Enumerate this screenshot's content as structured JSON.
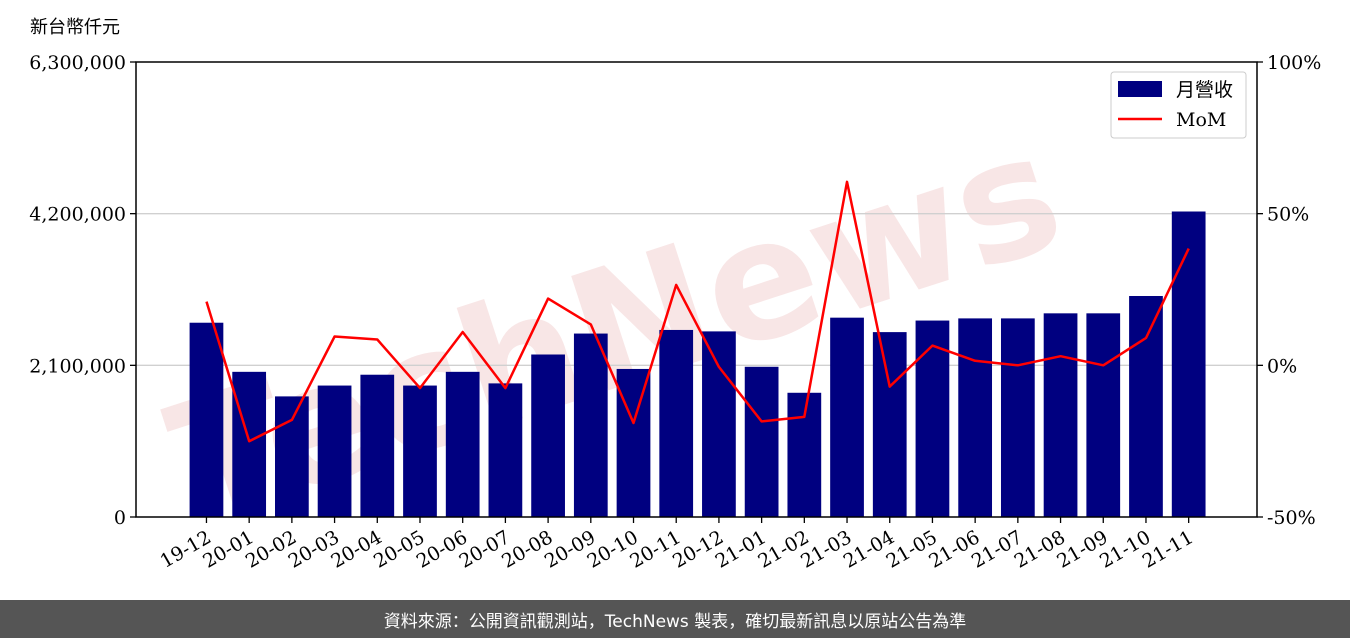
{
  "watermark": "TechNews",
  "footer": {
    "source_text": "資料來源：公開資訊觀測站，TechNews 製表，確切最新訊息以原站公告為準"
  },
  "colors": {
    "bar": "#000080",
    "line": "#ff0000",
    "grid": "#d0d0d0",
    "footer_bg": "#555555"
  },
  "chart_data": {
    "type": "bar",
    "categories": [
      "19-12",
      "20-01",
      "20-02",
      "20-03",
      "20-04",
      "20-05",
      "20-06",
      "20-07",
      "20-08",
      "20-09",
      "20-10",
      "20-11",
      "20-12",
      "21-01",
      "21-02",
      "21-03",
      "21-04",
      "21-05",
      "21-06",
      "21-07",
      "21-08",
      "21-09",
      "21-10",
      "21-11"
    ],
    "series": [
      {
        "name": "月營收",
        "type": "bar",
        "axis": "left",
        "values": [
          2690000,
          2010000,
          1670000,
          1820000,
          1970000,
          1820000,
          2010000,
          1850000,
          2250000,
          2540000,
          2050000,
          2590000,
          2570000,
          2080000,
          1720000,
          2760000,
          2560000,
          2720000,
          2750000,
          2750000,
          2820000,
          2820000,
          3060000,
          4230000
        ]
      },
      {
        "name": "MoM",
        "type": "line",
        "axis": "right",
        "values": [
          21,
          -25,
          -18,
          9.5,
          8.5,
          -7.5,
          11,
          -7.5,
          22,
          13.5,
          -19,
          26.5,
          -0.5,
          -18.5,
          -17,
          60.5,
          -7,
          6.5,
          1.5,
          0,
          3,
          0,
          9,
          38.5
        ]
      }
    ],
    "y_left": {
      "label": "新台幣仟元",
      "ylim": [
        0,
        6300000
      ],
      "ticks": [
        0,
        2100000,
        4200000,
        6300000
      ],
      "tick_labels": [
        "0",
        "2,100,000",
        "4,200,000",
        "6,300,000"
      ]
    },
    "y_right": {
      "ylim": [
        -50,
        100
      ],
      "ticks": [
        -50,
        0,
        50,
        100
      ],
      "tick_labels": [
        "-50%",
        "0%",
        "50%",
        "100%"
      ]
    },
    "grid": "horizontal",
    "legend": {
      "placement": "top-right"
    }
  }
}
